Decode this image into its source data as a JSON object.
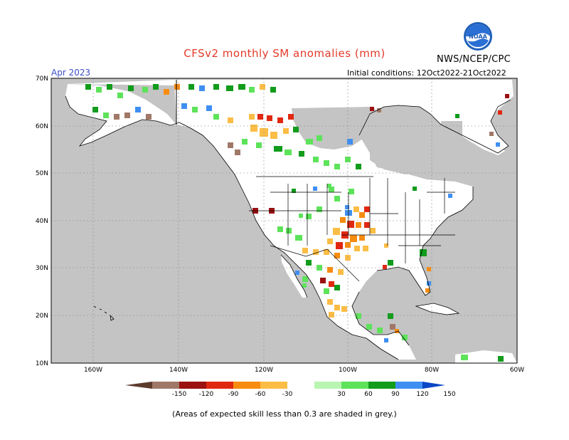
{
  "title": "CFSv2 monthly SM anomalies (mm)",
  "agency": "NWS/NCEP/CPC",
  "logo_text": "NOAA",
  "valid_month": "Apr 2023",
  "initial_conditions": "Initial conditions: 12Oct2022-21Oct2022",
  "footnote": "(Areas of expected skill less than 0.3 are shaded in grey.)",
  "axes": {
    "lat_labels": [
      "70N",
      "60N",
      "50N",
      "40N",
      "30N",
      "20N",
      "10N"
    ],
    "lon_labels": [
      "160W",
      "140W",
      "120W",
      "100W",
      "80W",
      "60W"
    ]
  },
  "colorbar": {
    "tick_labels": [
      "-150",
      "-120",
      "-90",
      "-60",
      "-30",
      "30",
      "60",
      "90",
      "120",
      "150"
    ],
    "colors": [
      "#5c3a2c",
      "#a07868",
      "#9b1010",
      "#e02810",
      "#f88c10",
      "#fbbd45",
      "#ffffff",
      "#b8f5b0",
      "#5de35a",
      "#119c1b",
      "#3f8ff2",
      "#0a46c6"
    ]
  },
  "colors": {
    "skill_grey": "#c4c4c4",
    "land_white": "#ffffff",
    "ocean_grey": "#c4c4c4",
    "title_red": "#e23a2a",
    "month_blue": "#3a4ec8"
  }
}
